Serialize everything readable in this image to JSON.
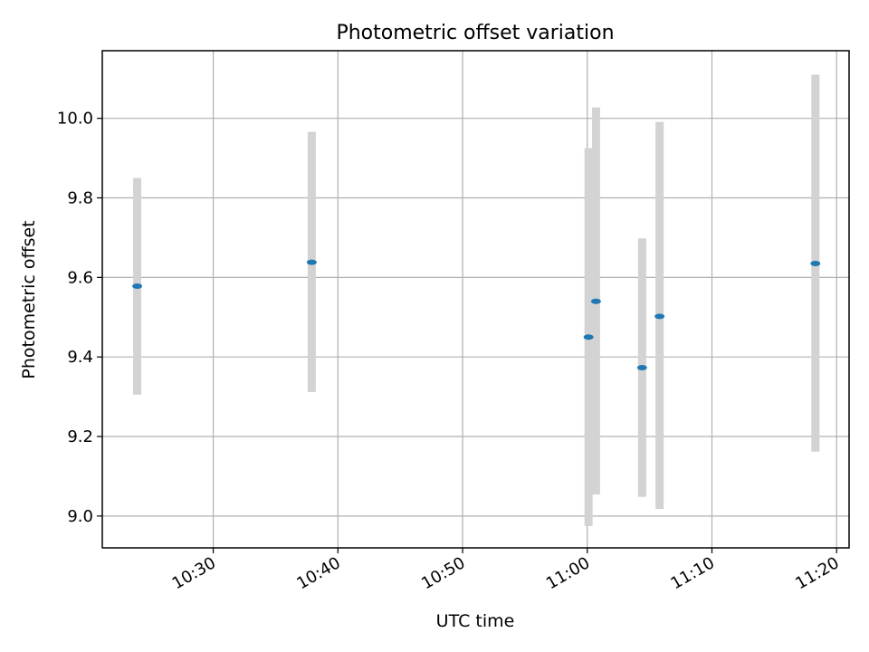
{
  "chart_data": {
    "type": "scatter",
    "title": "Photometric offset variation",
    "xlabel": "UTC time",
    "ylabel": "Photometric offset",
    "grid": true,
    "xlim": [
      "10:21:06",
      "11:21:00"
    ],
    "ylim": [
      8.92,
      10.17
    ],
    "x_ticks": [
      "10:30",
      "10:40",
      "10:50",
      "11:00",
      "11:10",
      "11:20"
    ],
    "y_ticks": [
      "9.0",
      "9.2",
      "9.4",
      "9.6",
      "9.8",
      "10.0"
    ],
    "colors": {
      "marker": "#1f77b4",
      "errorbar": "#d3d3d3",
      "grid": "#b0b0b0"
    },
    "points": [
      {
        "x": "10:23:54",
        "y": 9.578,
        "ylow": 9.305,
        "yhigh": 9.85
      },
      {
        "x": "10:37:54",
        "y": 9.638,
        "ylow": 9.312,
        "yhigh": 9.966
      },
      {
        "x": "11:00:06",
        "y": 9.45,
        "ylow": 8.975,
        "yhigh": 9.925
      },
      {
        "x": "11:00:42",
        "y": 9.54,
        "ylow": 9.054,
        "yhigh": 10.027
      },
      {
        "x": "11:04:24",
        "y": 9.373,
        "ylow": 9.048,
        "yhigh": 9.698
      },
      {
        "x": "11:05:48",
        "y": 9.502,
        "ylow": 9.018,
        "yhigh": 9.991
      },
      {
        "x": "11:18:18",
        "y": 9.635,
        "ylow": 9.162,
        "yhigh": 10.11
      }
    ]
  }
}
